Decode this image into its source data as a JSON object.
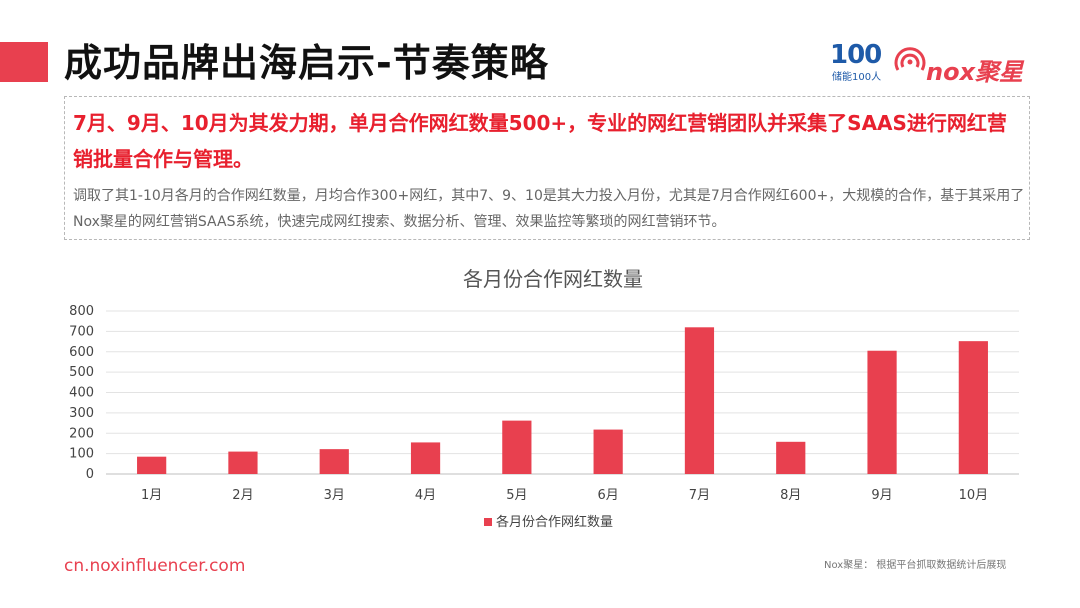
{
  "header": {
    "title": "成功品牌出海启示-节奏策略",
    "accent_color": "#e8404f",
    "logo_100_big": "100",
    "logo_100_small": "储能100人",
    "logo_nox_text": "nox聚星"
  },
  "summary": {
    "headline": "7月、9月、10月为其发力期，单月合作网红数量500+，专业的网红营销团队并采集了SAAS进行网红营销批量合作与管理。",
    "detail": "调取了其1-10月各月的合作网红数量，月均合作300+网红，其中7、9、10是其大力投入月份，尤其是7月合作网红600+，大规模的合作，基于其采用了Nox聚星的网红营销SAAS系统，快速完成网红搜索、数据分析、管理、效果监控等繁琐的网红营销环节。"
  },
  "chart_data": {
    "type": "bar",
    "title": "各月份合作网红数量",
    "categories": [
      "1月",
      "2月",
      "3月",
      "4月",
      "5月",
      "6月",
      "7月",
      "8月",
      "9月",
      "10月"
    ],
    "series": [
      {
        "name": "各月份合作网红数量",
        "values": [
          85,
          110,
          122,
          155,
          262,
          218,
          720,
          158,
          605,
          652
        ],
        "color": "#e8404f"
      }
    ],
    "ylim": [
      0,
      800
    ],
    "yticks": [
      0,
      100,
      200,
      300,
      400,
      500,
      600,
      700,
      800
    ],
    "grid": true,
    "legend_position": "bottom"
  },
  "footer": {
    "url": "cn.noxinfluencer.com",
    "source": "Nox聚星：  根据平台抓取数据统计后展现"
  }
}
